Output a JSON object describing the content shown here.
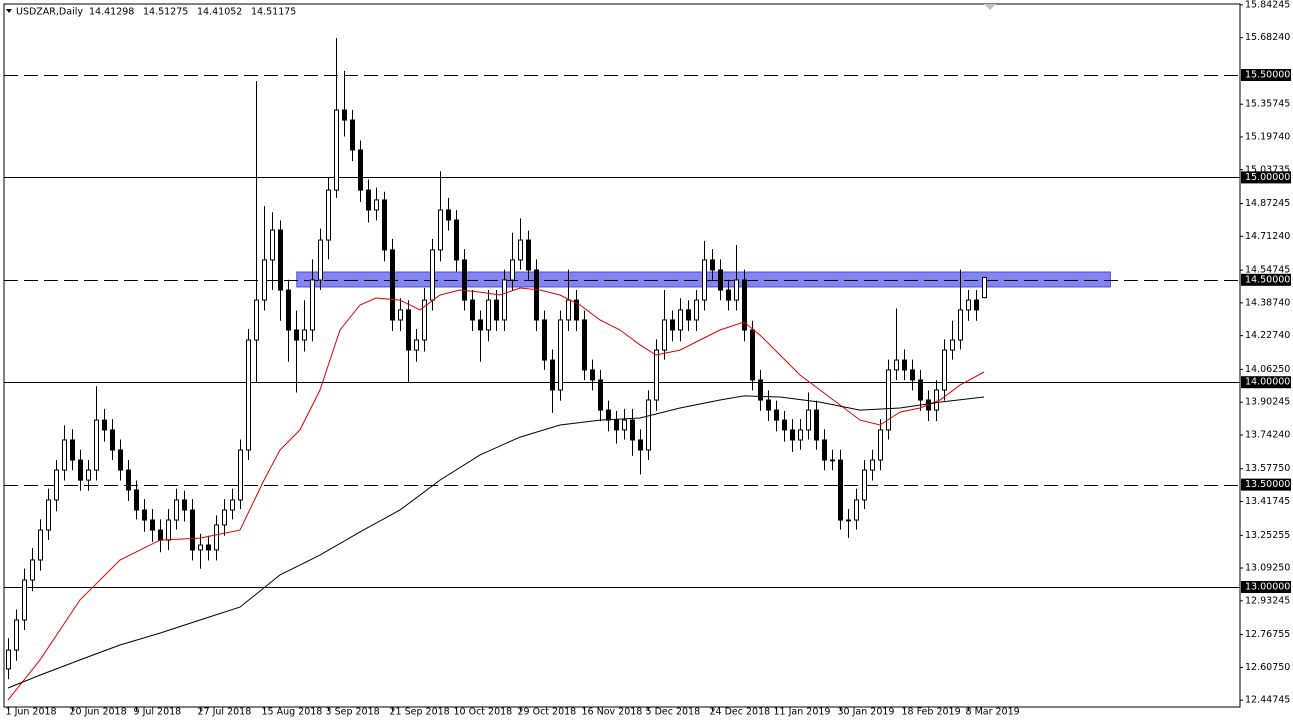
{
  "chart_data": {
    "type": "candlestick",
    "title": "USDZAR,Daily",
    "header_values": [
      "14.41298",
      "14.51275",
      "14.41052",
      "14.51175"
    ],
    "categories": [
      "1 Jun 2018",
      null,
      null,
      null,
      null,
      null,
      null,
      null,
      "20 Jun 2018",
      null,
      null,
      null,
      null,
      null,
      null,
      null,
      "9 Jul 2018",
      null,
      null,
      null,
      null,
      null,
      null,
      null,
      "27 Jul 2018",
      null,
      null,
      null,
      null,
      null,
      null,
      null,
      "15 Aug 2018",
      null,
      null,
      null,
      null,
      null,
      null,
      null,
      "3 Sep 2018",
      null,
      null,
      null,
      null,
      null,
      null,
      null,
      "21 Sep 2018",
      null,
      null,
      null,
      null,
      null,
      null,
      null,
      "10 Oct 2018",
      null,
      null,
      null,
      null,
      null,
      null,
      null,
      "29 Oct 2018",
      null,
      null,
      null,
      null,
      null,
      null,
      null,
      "16 Nov 2018",
      null,
      null,
      null,
      null,
      null,
      null,
      null,
      "5 Dec 2018",
      null,
      null,
      null,
      null,
      null,
      null,
      null,
      "24 Dec 2018",
      null,
      null,
      null,
      null,
      null,
      null,
      null,
      "11 Jan 2019",
      null,
      null,
      null,
      null,
      null,
      null,
      null,
      "30 Jan 2019",
      null,
      null,
      null,
      null,
      null,
      null,
      null,
      "18 Feb 2019",
      null,
      null,
      null,
      null,
      null,
      null,
      null,
      "8 Mar 2019",
      null,
      null
    ],
    "open": [
      12.6,
      12.692,
      12.839,
      13.034,
      13.132,
      13.278,
      13.425,
      13.571,
      13.718,
      13.62,
      13.522,
      13.571,
      13.815,
      13.767,
      13.669,
      13.571,
      13.474,
      13.376,
      13.327,
      13.278,
      13.229,
      13.327,
      13.425,
      13.376,
      13.181,
      13.205,
      13.181,
      13.303,
      13.376,
      13.425,
      13.669,
      14.206,
      14.401,
      14.597,
      14.743,
      14.45,
      14.255,
      14.206,
      14.255,
      14.499,
      14.694,
      14.938,
      15.329,
      15.28,
      15.134,
      14.938,
      14.841,
      14.89,
      14.646,
      14.304,
      14.353,
      14.157,
      14.206,
      14.401,
      14.646,
      14.841,
      14.792,
      14.597,
      14.401,
      14.304,
      14.255,
      14.401,
      14.304,
      14.499,
      14.597,
      14.694,
      14.548,
      14.304,
      14.108,
      13.962,
      14.304,
      14.401,
      14.304,
      14.06,
      14.011,
      13.864,
      13.815,
      13.767,
      13.815,
      13.718,
      13.669,
      13.913,
      14.157,
      14.304,
      14.255,
      14.353,
      14.304,
      14.401,
      14.597,
      14.548,
      14.45,
      14.401,
      14.499,
      14.255,
      14.011,
      13.913,
      13.864,
      13.815,
      13.767,
      13.718,
      13.767,
      13.864,
      13.718,
      13.62,
      13.62,
      13.327,
      13.327,
      13.425,
      13.571,
      13.62,
      13.767,
      14.06,
      14.108,
      14.06,
      14.011,
      13.913,
      13.864,
      13.962,
      14.157,
      14.206,
      14.353,
      14.401,
      14.41298
    ],
    "high": [
      12.75,
      12.89,
      13.09,
      13.19,
      13.33,
      13.48,
      13.62,
      13.79,
      13.77,
      13.67,
      13.62,
      13.98,
      13.87,
      13.82,
      13.72,
      13.62,
      13.52,
      13.43,
      13.38,
      13.33,
      13.38,
      13.48,
      13.47,
      13.43,
      13.26,
      13.25,
      13.35,
      13.43,
      13.48,
      13.72,
      14.26,
      15.47,
      14.86,
      14.83,
      14.79,
      14.5,
      14.35,
      14.4,
      14.6,
      14.75,
      15.0,
      15.68,
      15.52,
      15.33,
      15.18,
      14.99,
      14.95,
      14.93,
      14.7,
      14.41,
      14.4,
      14.26,
      14.46,
      14.7,
      15.03,
      14.9,
      14.84,
      14.65,
      14.45,
      14.35,
      14.45,
      14.45,
      14.55,
      14.73,
      14.8,
      14.74,
      14.6,
      14.35,
      14.16,
      14.35,
      14.55,
      14.45,
      14.35,
      14.11,
      14.06,
      13.91,
      13.86,
      13.87,
      13.87,
      13.77,
      13.96,
      14.21,
      14.45,
      14.35,
      14.41,
      14.4,
      14.45,
      14.69,
      14.65,
      14.6,
      14.5,
      14.67,
      14.55,
      14.3,
      14.06,
      13.96,
      13.91,
      13.86,
      13.82,
      13.82,
      13.95,
      13.91,
      13.77,
      13.67,
      13.67,
      13.38,
      13.48,
      13.62,
      13.67,
      13.82,
      14.11,
      14.36,
      14.16,
      14.11,
      14.06,
      13.96,
      14.01,
      14.21,
      14.3,
      14.55,
      14.45,
      14.45,
      14.51275
    ],
    "low": [
      12.55,
      12.64,
      12.79,
      12.98,
      13.08,
      13.23,
      13.37,
      13.52,
      13.57,
      13.47,
      13.47,
      13.52,
      13.71,
      13.62,
      13.52,
      13.42,
      13.33,
      13.27,
      13.22,
      13.17,
      13.18,
      13.28,
      13.32,
      13.13,
      13.09,
      13.13,
      13.13,
      13.25,
      13.33,
      13.38,
      13.62,
      14.0,
      14.35,
      14.45,
      14.3,
      14.1,
      13.95,
      14.15,
      14.2,
      14.45,
      14.6,
      14.9,
      15.2,
      15.08,
      14.88,
      14.78,
      14.79,
      14.59,
      14.25,
      14.25,
      14.0,
      14.1,
      14.15,
      14.35,
      14.59,
      14.74,
      14.54,
      14.35,
      14.25,
      14.1,
      14.2,
      14.25,
      14.25,
      14.45,
      14.55,
      14.5,
      14.25,
      14.06,
      13.85,
      13.91,
      14.25,
      14.25,
      14.01,
      13.96,
      13.81,
      13.76,
      13.7,
      13.72,
      13.64,
      13.55,
      13.62,
      13.86,
      14.11,
      14.2,
      14.2,
      14.25,
      14.25,
      14.35,
      14.5,
      14.4,
      14.35,
      14.35,
      14.2,
      13.96,
      13.86,
      13.81,
      13.76,
      13.71,
      13.66,
      13.67,
      13.72,
      13.67,
      13.57,
      13.57,
      13.28,
      13.24,
      13.28,
      13.38,
      13.52,
      13.57,
      13.72,
      14.01,
      14.01,
      13.96,
      13.86,
      13.81,
      13.81,
      13.91,
      14.11,
      14.16,
      14.3,
      14.3,
      14.41052
    ],
    "close": [
      12.692,
      12.839,
      13.034,
      13.132,
      13.278,
      13.425,
      13.571,
      13.718,
      13.62,
      13.522,
      13.571,
      13.815,
      13.767,
      13.669,
      13.571,
      13.474,
      13.376,
      13.327,
      13.278,
      13.229,
      13.327,
      13.425,
      13.376,
      13.181,
      13.205,
      13.181,
      13.303,
      13.376,
      13.425,
      13.669,
      14.206,
      14.401,
      14.597,
      14.743,
      14.45,
      14.255,
      14.206,
      14.255,
      14.499,
      14.694,
      14.938,
      15.329,
      15.28,
      15.134,
      14.938,
      14.841,
      14.89,
      14.646,
      14.304,
      14.353,
      14.157,
      14.206,
      14.401,
      14.646,
      14.841,
      14.792,
      14.597,
      14.401,
      14.304,
      14.255,
      14.401,
      14.304,
      14.499,
      14.597,
      14.694,
      14.548,
      14.304,
      14.108,
      13.962,
      14.304,
      14.401,
      14.304,
      14.06,
      14.011,
      13.864,
      13.815,
      13.767,
      13.815,
      13.718,
      13.669,
      13.913,
      14.157,
      14.304,
      14.255,
      14.353,
      14.304,
      14.401,
      14.597,
      14.548,
      14.45,
      14.401,
      14.499,
      14.255,
      14.011,
      13.913,
      13.864,
      13.815,
      13.767,
      13.718,
      13.767,
      13.864,
      13.718,
      13.62,
      13.62,
      13.327,
      13.327,
      13.425,
      13.571,
      13.62,
      13.767,
      14.06,
      14.108,
      14.06,
      14.011,
      13.913,
      13.864,
      13.962,
      14.157,
      14.206,
      14.353,
      14.401,
      14.353,
      14.51175
    ],
    "up_color": "#ffffff",
    "down_color": "#000000",
    "wick_color": "#000000",
    "lines": [
      {
        "color": "#e00000",
        "x": [
          0,
          4,
          9,
          14,
          19,
          24,
          29,
          32,
          34,
          36.5,
          39,
          41.5,
          44,
          46,
          49,
          51.5,
          54,
          56.5,
          59,
          61.5,
          64,
          66.5,
          69,
          71.5,
          74,
          76.5,
          79,
          81,
          84,
          86.5,
          89,
          92,
          94,
          96.5,
          99,
          101.5,
          104,
          106.5,
          109,
          111.5,
          114,
          116.5,
          119,
          122
        ],
        "values": [
          12.448,
          12.644,
          12.937,
          13.132,
          13.229,
          13.239,
          13.278,
          13.522,
          13.669,
          13.767,
          13.962,
          14.255,
          14.377,
          14.411,
          14.401,
          14.353,
          14.426,
          14.45,
          14.44,
          14.426,
          14.46,
          14.45,
          14.426,
          14.377,
          14.304,
          14.255,
          14.182,
          14.133,
          14.157,
          14.206,
          14.255,
          14.294,
          14.23,
          14.133,
          14.035,
          13.962,
          13.889,
          13.815,
          13.791,
          13.854,
          13.874,
          13.913,
          13.986,
          14.05
        ]
      },
      {
        "color": "#000000",
        "x": [
          0,
          4,
          9,
          14,
          19,
          24,
          29,
          34,
          39,
          44,
          49,
          54,
          59,
          64,
          69,
          74,
          79,
          84,
          89,
          92,
          96.5,
          101.5,
          106.5,
          111.5,
          116.5,
          122
        ],
        "values": [
          12.507,
          12.57,
          12.644,
          12.717,
          12.775,
          12.839,
          12.902,
          13.059,
          13.156,
          13.269,
          13.376,
          13.522,
          13.645,
          13.732,
          13.791,
          13.815,
          13.825,
          13.874,
          13.913,
          13.933,
          13.928,
          13.903,
          13.864,
          13.874,
          13.903,
          13.928
        ]
      }
    ],
    "zone": {
      "from": 14.465,
      "to": 14.538,
      "x": [
        36.1,
        137.8
      ],
      "color": "#6f6ff2"
    },
    "levels": [
      {
        "value": 15.5,
        "label": "15.50000",
        "dashed": true
      },
      {
        "value": 15.0,
        "label": "15.00000",
        "dashed": false
      },
      {
        "value": 14.5,
        "label": "14.50000",
        "dashed": true
      },
      {
        "value": 14.0,
        "label": "14.00000",
        "dashed": false
      },
      {
        "value": 13.5,
        "label": "13.50000",
        "dashed": true
      },
      {
        "value": 13.0,
        "label": "13.00000",
        "dashed": false
      }
    ],
    "xlim": [
      -0.5,
      154
    ],
    "ylim": [
      12.4141,
      15.8467
    ],
    "yticks": [
      {
        "value": 15.84245,
        "label": "15.84245"
      },
      {
        "value": 15.6824,
        "label": "15.68240"
      },
      {
        "value": 15.35745,
        "label": "15.35745"
      },
      {
        "value": 15.1974,
        "label": "15.19740"
      },
      {
        "value": 15.03735,
        "label": "15.03735"
      },
      {
        "value": 14.87245,
        "label": "14.87245"
      },
      {
        "value": 14.7124,
        "label": "14.71240"
      },
      {
        "value": 14.54745,
        "label": "14.54745"
      },
      {
        "value": 14.3874,
        "label": "14.38740"
      },
      {
        "value": 14.2274,
        "label": "14.22740"
      },
      {
        "value": 14.0625,
        "label": "14.06250"
      },
      {
        "value": 13.90245,
        "label": "13.90245"
      },
      {
        "value": 13.7424,
        "label": "13.74240"
      },
      {
        "value": 13.5775,
        "label": "13.57750"
      },
      {
        "value": 13.41745,
        "label": "13.41745"
      },
      {
        "value": 13.25255,
        "label": "13.25255"
      },
      {
        "value": 13.0925,
        "label": "13.09250"
      },
      {
        "value": 12.93245,
        "label": "12.93245"
      },
      {
        "value": 12.76755,
        "label": "12.76755"
      },
      {
        "value": 12.6075,
        "label": "12.60750"
      },
      {
        "value": 12.44745,
        "label": "12.44745"
      }
    ]
  }
}
